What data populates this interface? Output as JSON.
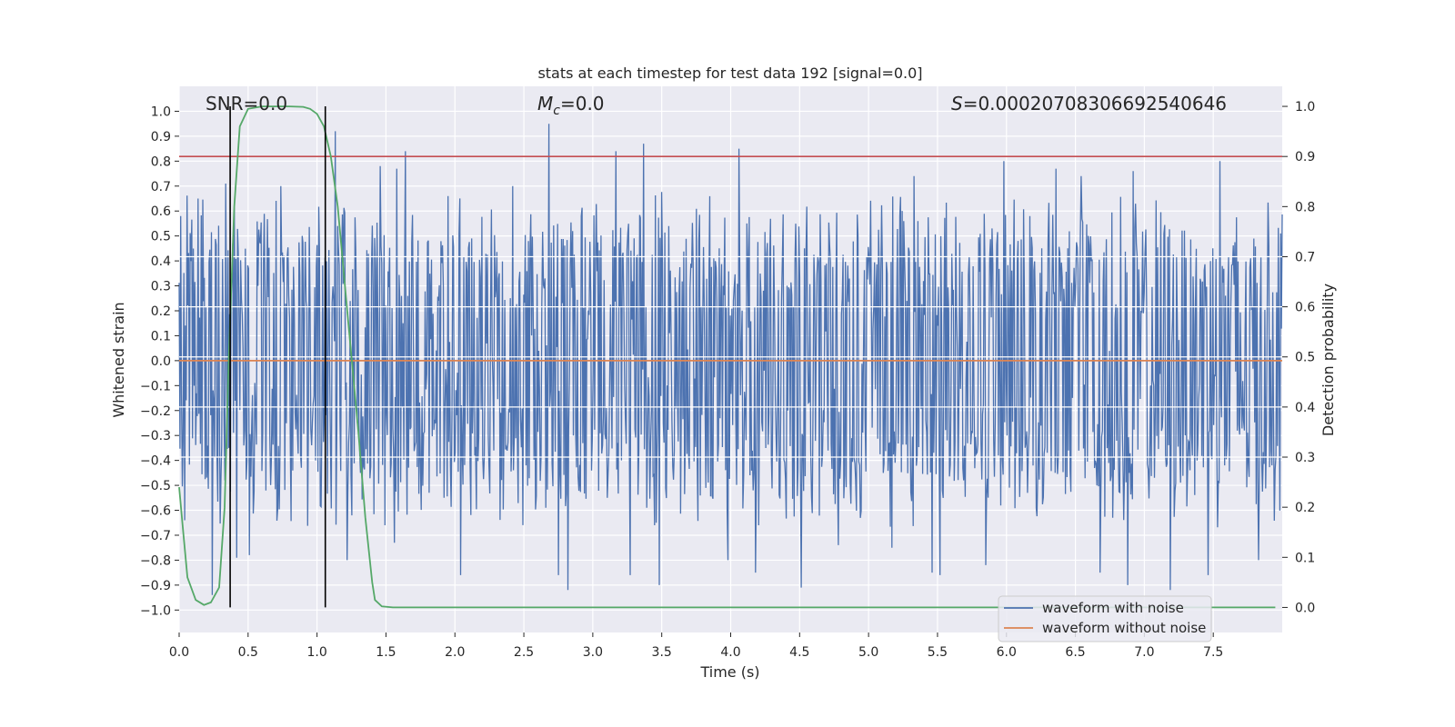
{
  "chart_data": {
    "type": "line",
    "title": "stats at each timestep for test data 192 [signal=0.0]",
    "xlabel": "Time (s)",
    "ylabel": "Whitened strain",
    "ylabel_right": "Detection probability",
    "xlim": [
      0.0,
      8.0
    ],
    "ylim": [
      -1.09,
      1.1
    ],
    "ylim_right": [
      -0.05,
      1.04
    ],
    "x_ticks": [
      0.0,
      0.5,
      1.0,
      1.5,
      2.0,
      2.5,
      3.0,
      3.5,
      4.0,
      4.5,
      5.0,
      5.5,
      6.0,
      6.5,
      7.0,
      7.5
    ],
    "x_tick_labels": [
      "0.0",
      "0.5",
      "1.0",
      "1.5",
      "2.0",
      "2.5",
      "3.0",
      "3.5",
      "4.0",
      "4.5",
      "5.0",
      "5.5",
      "6.0",
      "6.5",
      "7.0",
      "7.5"
    ],
    "y_ticks": [
      1.0,
      0.9,
      0.8,
      0.7,
      0.6,
      0.5,
      0.4,
      0.3,
      0.2,
      0.1,
      0.0,
      -0.1,
      -0.2,
      -0.3,
      -0.4,
      -0.5,
      -0.6,
      -0.7,
      -0.8,
      -0.9,
      -1.0
    ],
    "y_tick_labels": [
      "1.0",
      "0.9",
      "0.8",
      "0.7",
      "0.6",
      "0.5",
      "0.4",
      "0.3",
      "0.2",
      "0.1",
      "0.0",
      "−0.1",
      "−0.2",
      "−0.3",
      "−0.4",
      "−0.5",
      "−0.6",
      "−0.7",
      "−0.8",
      "−0.9",
      "−1.0"
    ],
    "y_ticks_right": [
      1.0,
      0.9,
      0.8,
      0.7,
      0.6,
      0.5,
      0.4,
      0.3,
      0.2,
      0.1,
      0.0
    ],
    "y_tick_labels_right": [
      "1.0",
      "0.9",
      "0.8",
      "0.7",
      "0.6",
      "0.5",
      "0.4",
      "0.3",
      "0.2",
      "0.1",
      "0.0"
    ],
    "grid": true,
    "legend_placement": "lower-right",
    "colors": {
      "background": "#eaeaf2",
      "grid": "#ffffff",
      "noisy": "#4c72b0",
      "clean": "#dd8452",
      "probability": "#55a868",
      "threshold": "#c44e52",
      "markers": "#000000"
    },
    "annotations": {
      "snr": "SNR=0.0",
      "mc_symbol": "M",
      "mc_subscript": "c",
      "mc_value": "=0.0",
      "s_symbol": "S",
      "s_value": "=0.00020708306692540646"
    },
    "series": [
      {
        "name": "waveform with noise",
        "kind": "noise",
        "sample_count": 1400,
        "band_upper": 0.55,
        "band_lower": -0.55,
        "peaks": [
          {
            "x": 0.01,
            "y": 0.58
          },
          {
            "x": 0.04,
            "y": -0.64
          },
          {
            "x": 0.14,
            "y": 0.65
          },
          {
            "x": 0.24,
            "y": -0.94
          },
          {
            "x": 0.34,
            "y": 0.71
          },
          {
            "x": 0.42,
            "y": -0.79
          },
          {
            "x": 0.51,
            "y": -0.78
          },
          {
            "x": 0.74,
            "y": 0.7
          },
          {
            "x": 1.13,
            "y": 0.92
          },
          {
            "x": 1.22,
            "y": -0.8
          },
          {
            "x": 1.46,
            "y": 0.78
          },
          {
            "x": 1.56,
            "y": -0.73
          },
          {
            "x": 1.58,
            "y": 0.77
          },
          {
            "x": 1.64,
            "y": 0.84
          },
          {
            "x": 1.95,
            "y": 0.66
          },
          {
            "x": 2.04,
            "y": -0.86
          },
          {
            "x": 2.42,
            "y": 0.7
          },
          {
            "x": 2.68,
            "y": 0.95
          },
          {
            "x": 2.75,
            "y": -0.86
          },
          {
            "x": 2.82,
            "y": -0.92
          },
          {
            "x": 3.17,
            "y": 0.84
          },
          {
            "x": 3.27,
            "y": -0.86
          },
          {
            "x": 3.37,
            "y": 0.87
          },
          {
            "x": 3.48,
            "y": -0.9
          },
          {
            "x": 3.98,
            "y": -0.8
          },
          {
            "x": 4.06,
            "y": 0.85
          },
          {
            "x": 4.18,
            "y": -0.85
          },
          {
            "x": 4.51,
            "y": -0.91
          },
          {
            "x": 4.78,
            "y": -0.74
          },
          {
            "x": 5.17,
            "y": -0.75
          },
          {
            "x": 5.33,
            "y": 0.74
          },
          {
            "x": 5.46,
            "y": -0.85
          },
          {
            "x": 5.52,
            "y": -0.86
          },
          {
            "x": 5.85,
            "y": -0.82
          },
          {
            "x": 5.98,
            "y": 0.8
          },
          {
            "x": 6.36,
            "y": 0.77
          },
          {
            "x": 6.54,
            "y": 0.74
          },
          {
            "x": 6.68,
            "y": -0.85
          },
          {
            "x": 6.88,
            "y": -0.9
          },
          {
            "x": 6.92,
            "y": 0.76
          },
          {
            "x": 7.19,
            "y": -0.92
          },
          {
            "x": 7.46,
            "y": -0.86
          },
          {
            "x": 7.55,
            "y": 0.8
          },
          {
            "x": 7.83,
            "y": -0.8
          }
        ]
      },
      {
        "name": "waveform without noise",
        "kind": "line",
        "x": [
          0.0,
          8.0
        ],
        "y": [
          0.0,
          0.0
        ]
      },
      {
        "name": "",
        "kind": "line",
        "axis": "right",
        "x": [
          0.0,
          0.03,
          0.06,
          0.12,
          0.18,
          0.23,
          0.29,
          0.33,
          0.36,
          0.4,
          0.44,
          0.5,
          0.6,
          0.7,
          0.8,
          0.9,
          0.95,
          1.0,
          1.05,
          1.1,
          1.15,
          1.2,
          1.25,
          1.3,
          1.35,
          1.4,
          1.42,
          1.47,
          1.55,
          2.0,
          3.0,
          4.0,
          5.0,
          6.0,
          7.0,
          7.95
        ],
        "y": [
          0.24,
          0.15,
          0.06,
          0.015,
          0.005,
          0.01,
          0.04,
          0.2,
          0.5,
          0.8,
          0.96,
          0.995,
          1.0,
          1.0,
          1.0,
          0.999,
          0.995,
          0.985,
          0.96,
          0.9,
          0.8,
          0.65,
          0.5,
          0.35,
          0.18,
          0.05,
          0.015,
          0.002,
          0.0,
          0.0,
          0.0,
          0.0,
          0.0,
          0.0,
          0.0,
          0.0
        ]
      }
    ],
    "threshold_right": 0.9,
    "vertical_markers": [
      {
        "x": 0.37,
        "y_range_right": [
          0.0,
          1.0
        ]
      },
      {
        "x": 1.06,
        "y_range_right": [
          0.0,
          1.0
        ]
      }
    ],
    "horizontal_guides_right": [
      0.7,
      0.6,
      0.5,
      0.4,
      0.3
    ]
  }
}
